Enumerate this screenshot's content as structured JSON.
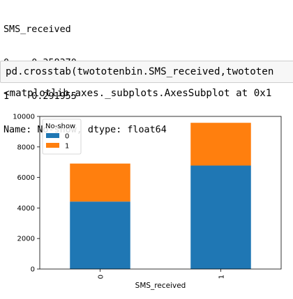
{
  "output_lines": [
    "SMS_received",
    "0    0.358370",
    "1    0.291955",
    "Name: No-show, dtype: float64"
  ],
  "code_cell": "pd.crosstab(twototenbin.SMS_received,twototen",
  "repr_line": "<matplotlib.axes._subplots.AxesSubplot at 0x1",
  "chart_data": {
    "type": "bar",
    "stacked": true,
    "categories": [
      "0",
      "1"
    ],
    "series": [
      {
        "name": "0",
        "color": "#1f77b4",
        "values": [
          4420,
          6780
        ]
      },
      {
        "name": "1",
        "color": "#ff7f0e",
        "values": [
          2490,
          2800
        ]
      }
    ],
    "xlabel": "SMS_received",
    "ylabel": "",
    "ylim": [
      0,
      10000
    ],
    "yticks": [
      0,
      2000,
      4000,
      6000,
      8000,
      10000
    ],
    "legend": {
      "title": "No-show",
      "placement": "top-left"
    },
    "grid": false
  }
}
